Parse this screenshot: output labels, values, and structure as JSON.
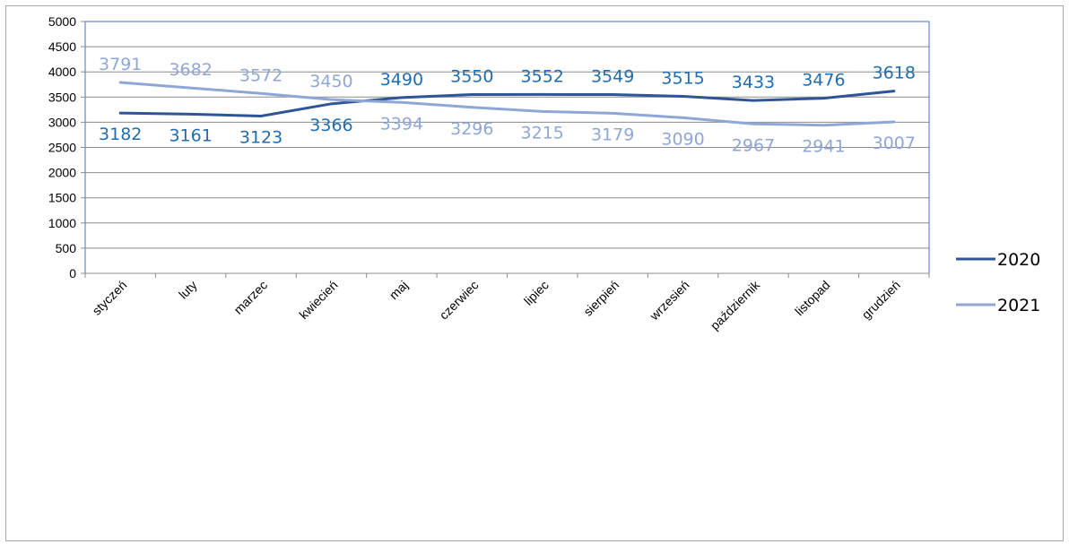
{
  "chart_data": {
    "type": "line",
    "categories": [
      "styczeń",
      "luty",
      "marzec",
      "kwiecień",
      "maj",
      "czerwiec",
      "lipiec",
      "sierpień",
      "wrzesień",
      "październik",
      "listopad",
      "grudzień"
    ],
    "series": [
      {
        "name": "2020",
        "color": "#2e5597",
        "label_color": "#1f6db0",
        "values": [
          3182,
          3161,
          3123,
          3366,
          3490,
          3550,
          3552,
          3549,
          3515,
          3433,
          3476,
          3618
        ],
        "label_text": [
          "3182",
          "3161",
          "3123",
          "3366",
          "3490",
          "3550",
          "3552",
          "3549",
          "3515",
          "3433",
          "3476",
          "3618"
        ]
      },
      {
        "name": "2021",
        "color": "#8fa7d6",
        "label_color": "#8fa7d6",
        "values": [
          3791,
          3682,
          3572,
          3450,
          3394,
          3296,
          3215,
          3179,
          3090,
          2967,
          2941,
          3007
        ],
        "label_text": [
          "3791",
          "3682",
          "3572",
          "3450",
          "3394",
          "3296",
          "3215",
          "3179",
          "3090",
          "2967",
          "2941",
          "3007"
        ]
      }
    ],
    "ylim": [
      0,
      5000
    ],
    "yticks": [
      "0",
      "500",
      "1000",
      "1500",
      "2000",
      "2500",
      "3000",
      "3500",
      "4000",
      "4500",
      "5000"
    ],
    "grid": true,
    "legend": "right"
  }
}
